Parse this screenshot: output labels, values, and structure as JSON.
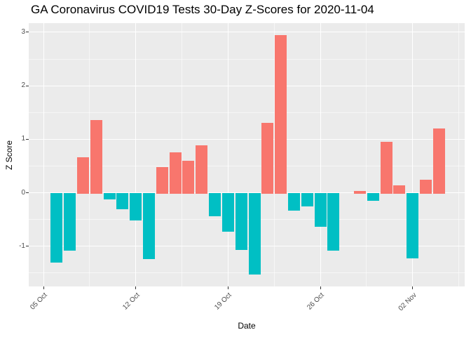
{
  "chart_data": {
    "type": "bar",
    "title": "GA Coronavirus COVID19 Tests 30-Day Z-Scores for 2020-11-04",
    "xlabel": "Date",
    "ylabel": "Z Score",
    "grid": true,
    "legend_position": "none",
    "ylim": [
      -1.75,
      3.17
    ],
    "xlim_day_offsets": [
      -1.12,
      31.95
    ],
    "y_ticks": [
      {
        "value": -1,
        "label": "-1"
      },
      {
        "value": 0,
        "label": "0"
      },
      {
        "value": 1,
        "label": "1"
      },
      {
        "value": 2,
        "label": "2"
      },
      {
        "value": 3,
        "label": "3"
      }
    ],
    "y_minor_ticks": [
      -1.5,
      -0.5,
      0.5,
      1.5,
      2.5
    ],
    "x_ticks": [
      {
        "offset": 0,
        "label": "05 Oct"
      },
      {
        "offset": 7,
        "label": "12 Oct"
      },
      {
        "offset": 14,
        "label": "19 Oct"
      },
      {
        "offset": 21,
        "label": "26 Oct"
      },
      {
        "offset": 28,
        "label": "02 Nov"
      }
    ],
    "x_minor_offsets": [
      3.5,
      10.5,
      17.5,
      24.5,
      31.5
    ],
    "points": [
      {
        "date": "2020-10-06",
        "day": 1,
        "z": -1.29
      },
      {
        "date": "2020-10-07",
        "day": 2,
        "z": -1.07
      },
      {
        "date": "2020-10-08",
        "day": 3,
        "z": 0.67
      },
      {
        "date": "2020-10-09",
        "day": 4,
        "z": 1.36
      },
      {
        "date": "2020-10-10",
        "day": 5,
        "z": -0.11
      },
      {
        "date": "2020-10-11",
        "day": 6,
        "z": -0.3
      },
      {
        "date": "2020-10-12",
        "day": 7,
        "z": -0.5
      },
      {
        "date": "2020-10-13",
        "day": 8,
        "z": -1.23
      },
      {
        "date": "2020-10-14",
        "day": 9,
        "z": 0.48
      },
      {
        "date": "2020-10-15",
        "day": 10,
        "z": 0.75
      },
      {
        "date": "2020-10-16",
        "day": 11,
        "z": 0.6
      },
      {
        "date": "2020-10-17",
        "day": 12,
        "z": 0.89
      },
      {
        "date": "2020-10-18",
        "day": 13,
        "z": -0.43
      },
      {
        "date": "2020-10-19",
        "day": 14,
        "z": -0.72
      },
      {
        "date": "2020-10-20",
        "day": 15,
        "z": -1.06
      },
      {
        "date": "2020-10-21",
        "day": 16,
        "z": -1.51
      },
      {
        "date": "2020-10-22",
        "day": 17,
        "z": 1.31
      },
      {
        "date": "2020-10-23",
        "day": 18,
        "z": 2.95
      },
      {
        "date": "2020-10-24",
        "day": 19,
        "z": -0.32
      },
      {
        "date": "2020-10-25",
        "day": 20,
        "z": -0.24
      },
      {
        "date": "2020-10-26",
        "day": 21,
        "z": -0.62
      },
      {
        "date": "2020-10-27",
        "day": 22,
        "z": -1.07
      },
      {
        "date": "2020-10-28",
        "day": 23,
        "z": 0.0
      },
      {
        "date": "2020-10-29",
        "day": 24,
        "z": 0.04
      },
      {
        "date": "2020-10-30",
        "day": 25,
        "z": -0.13
      },
      {
        "date": "2020-10-31",
        "day": 26,
        "z": 0.95
      },
      {
        "date": "2020-11-01",
        "day": 27,
        "z": 0.14
      },
      {
        "date": "2020-11-02",
        "day": 28,
        "z": -1.21
      },
      {
        "date": "2020-11-03",
        "day": 29,
        "z": 0.25
      },
      {
        "date": "2020-11-04",
        "day": 30,
        "z": 1.2
      }
    ],
    "colors": {
      "positive_bar": "#F8766D",
      "negative_bar": "#00BFC4",
      "panel_background": "#EBEBEB",
      "gridline": "#FFFFFF",
      "axis_text": "#4D4D4D",
      "title_text": "#000000"
    }
  }
}
